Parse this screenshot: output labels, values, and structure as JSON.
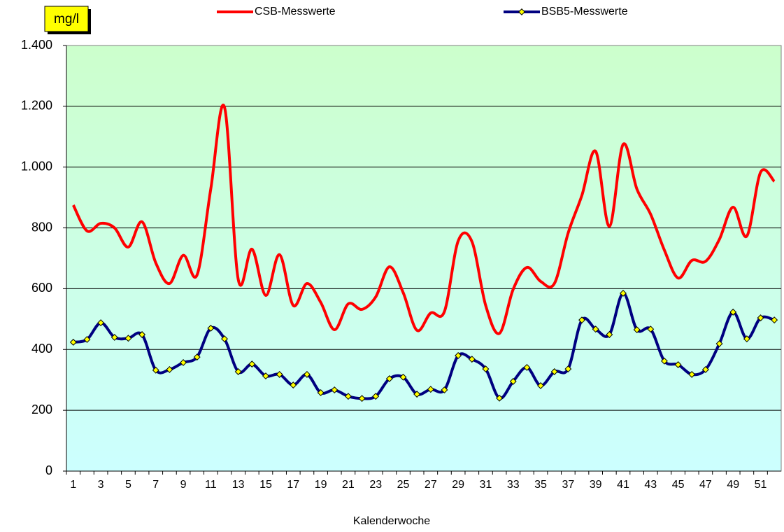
{
  "chart_data": {
    "type": "line",
    "y_label": "mg/l",
    "x_label": "Kalenderwoche",
    "categories": [
      1,
      null,
      3,
      null,
      5,
      null,
      7,
      null,
      9,
      null,
      11,
      null,
      13,
      null,
      15,
      null,
      17,
      null,
      19,
      null,
      21,
      null,
      23,
      null,
      25,
      null,
      27,
      null,
      29,
      null,
      31,
      null,
      33,
      null,
      35,
      null,
      37,
      null,
      39,
      null,
      41,
      null,
      43,
      null,
      45,
      null,
      47,
      null,
      49,
      null,
      51,
      null
    ],
    "series": [
      {
        "name": "CSB-Messwerte",
        "color": "#ff0000",
        "marker": false,
        "values": [
          875,
          790,
          815,
          800,
          737,
          820,
          685,
          617,
          710,
          645,
          928,
          1197,
          630,
          730,
          578,
          712,
          545,
          617,
          555,
          465,
          550,
          532,
          573,
          672,
          587,
          463,
          520,
          525,
          757,
          755,
          545,
          453,
          598,
          670,
          624,
          617,
          783,
          907,
          1052,
          805,
          1075,
          928,
          845,
          727,
          635,
          693,
          690,
          762,
          868,
          773,
          983,
          953
        ]
      },
      {
        "name": "BSB5-Messwerte",
        "color": "#000080",
        "marker": true,
        "marker_color": "#ffff00",
        "values": [
          424,
          433,
          488,
          440,
          437,
          449,
          332,
          334,
          357,
          375,
          470,
          435,
          327,
          352,
          313,
          318,
          283,
          318,
          258,
          267,
          246,
          239,
          246,
          304,
          309,
          253,
          269,
          267,
          380,
          368,
          336,
          240,
          295,
          341,
          281,
          327,
          336,
          497,
          467,
          449,
          585,
          465,
          467,
          362,
          350,
          318,
          334,
          419,
          523,
          435,
          504,
          497
        ]
      }
    ],
    "ylim": [
      0,
      1400
    ],
    "yticks": [
      0,
      200,
      400,
      600,
      800,
      {
        "value": 1000,
        "label": "1.000"
      },
      {
        "value": 1200,
        "label": "1.200"
      },
      {
        "value": 1400,
        "label": "1.400"
      }
    ],
    "grid": true,
    "legend": "top"
  }
}
